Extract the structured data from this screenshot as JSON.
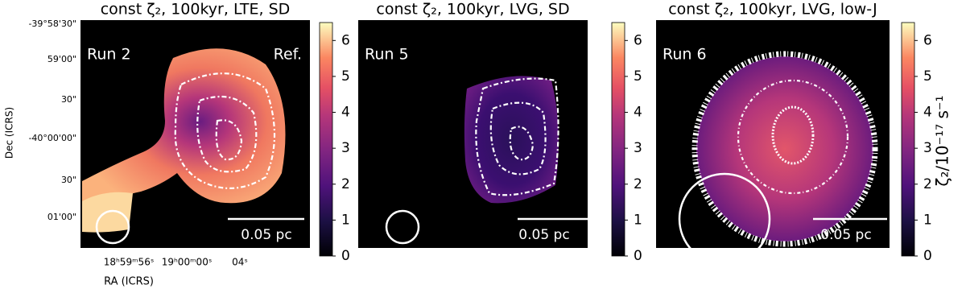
{
  "chart_data": [
    {
      "type": "image",
      "title": "const ζ₂, 100kyr, LTE, SD",
      "annotations": {
        "run": "Run 2",
        "ref": "Ref.",
        "scale": "0.05 pc"
      },
      "ylabel": "Dec (ICRS)",
      "xlabel": "RA (ICRS)",
      "ytick_labels": [
        "-39°58'30\"",
        "59'00\"",
        "30\"",
        "-40°00'00\"",
        "30\"",
        "01'00\""
      ],
      "xtick_labels": [
        "18ʰ59ᵐ56ˢ",
        "19ʰ00ᵐ00ˢ",
        "04ˢ"
      ],
      "colormap": "magma",
      "clim": [
        0,
        6.5
      ],
      "cticks": [
        0,
        1,
        2,
        3,
        4,
        5,
        6
      ]
    },
    {
      "type": "image",
      "title": "const ζ₂, 100kyr, LVG, SD",
      "annotations": {
        "run": "Run 5",
        "scale": "0.05 pc"
      },
      "colormap": "magma",
      "clim": [
        0,
        6.5
      ],
      "cticks": [
        0,
        1,
        2,
        3,
        4,
        5,
        6
      ]
    },
    {
      "type": "image",
      "title": "const ζ₂, 100kyr, LVG, low-J",
      "annotations": {
        "run": "Run 6",
        "scale": "0.05 pc"
      },
      "colormap": "magma",
      "clim": [
        0,
        6.5
      ],
      "cticks": [
        0,
        1,
        2,
        3,
        4,
        5,
        6
      ],
      "colorbar_label": "ζ₂/10⁻¹⁷ s⁻¹"
    }
  ]
}
